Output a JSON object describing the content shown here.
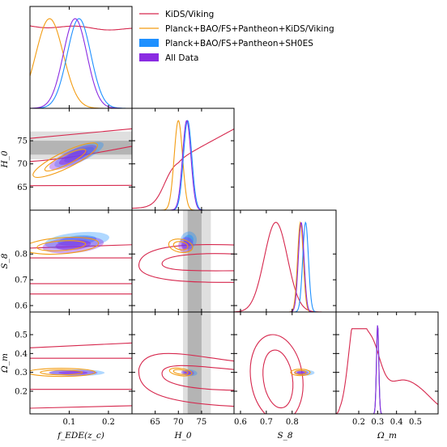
{
  "chart_data": {
    "type": "corner",
    "parameters": [
      {
        "key": "fEDE",
        "label": "f_EDE(z_c)",
        "range": [
          0.0,
          0.26
        ],
        "ticks": [
          0.1,
          0.2
        ],
        "tick_labels": [
          "0.1",
          "0.2"
        ]
      },
      {
        "key": "H0",
        "label": "H_0",
        "range": [
          60,
          82
        ],
        "ticks": [
          65,
          70,
          75
        ],
        "tick_labels": [
          "65",
          "70",
          "75"
        ]
      },
      {
        "key": "S8",
        "label": "S_8",
        "range": [
          0.575,
          0.97
        ],
        "ticks": [
          0.6,
          0.7,
          0.8
        ],
        "tick_labels": [
          "0.6",
          "0.7",
          "0.8"
        ]
      },
      {
        "key": "Om",
        "label": "Ω_m",
        "range": [
          0.08,
          0.62
        ],
        "ticks": [
          0.2,
          0.3,
          0.4,
          0.5
        ],
        "tick_labels": [
          "0.2",
          "0.3",
          "0.4",
          "0.5"
        ]
      }
    ],
    "left_axis": [
      {
        "param": "H0",
        "ticks": [
          65,
          70,
          75
        ],
        "tick_labels": [
          "65",
          "70",
          "75"
        ],
        "label": "H_0"
      },
      {
        "param": "S8",
        "ticks": [
          0.6,
          0.7,
          0.8
        ],
        "tick_labels": [
          "0.6",
          "0.7",
          "0.8"
        ],
        "label": "S_8"
      },
      {
        "param": "Om",
        "ticks": [
          0.2,
          0.3,
          0.4,
          0.5
        ],
        "tick_labels": [
          "0.2",
          "0.3",
          "0.4",
          "0.5"
        ],
        "label": "Ω_m"
      }
    ],
    "series": [
      {
        "name": "KiDS/Viking",
        "color": "#d6274d",
        "style": "line"
      },
      {
        "name": "Planck+BAO/FS+Pantheon+KiDS/Viking",
        "color": "#f39c12",
        "style": "line"
      },
      {
        "name": "Planck+BAO/FS+Pantheon+SH0ES",
        "color": "#1e90ff",
        "style": "filled"
      },
      {
        "name": "All Data",
        "color": "#8a2be2",
        "style": "filled"
      }
    ],
    "marginals_1d": {
      "fEDE": {
        "KiDS/Viking": {
          "kind": "flat",
          "level": 0.92
        },
        "Planck+BAO/FS+Pantheon+KiDS/Viking": {
          "mean": 0.05,
          "sd": 0.035
        },
        "Planck+BAO/FS+Pantheon+SH0ES": {
          "mean": 0.125,
          "sd": 0.03
        },
        "All Data": {
          "mean": 0.115,
          "sd": 0.03
        }
      },
      "H0": {
        "KiDS/Viking": {
          "kind": "rising"
        },
        "Planck+BAO/FS+Pantheon+KiDS/Viking": {
          "mean": 70.0,
          "sd": 0.9
        },
        "Planck+BAO/FS+Pantheon+SH0ES": {
          "mean": 72.0,
          "sd": 0.9
        },
        "All Data": {
          "mean": 71.8,
          "sd": 0.9
        }
      },
      "S8": {
        "KiDS/Viking": {
          "mean": 0.737,
          "sd": 0.045
        },
        "Planck+BAO/FS+Pantheon+KiDS/Viking": {
          "mean": 0.832,
          "sd": 0.011
        },
        "Planck+BAO/FS+Pantheon+SH0ES": {
          "mean": 0.852,
          "sd": 0.011
        },
        "All Data": {
          "mean": 0.835,
          "sd": 0.011
        }
      },
      "Om": {
        "KiDS/Viking": {
          "kind": "broad",
          "peak": 0.18
        },
        "Planck+BAO/FS+Pantheon+KiDS/Viking": {
          "mean": 0.3,
          "sd": 0.006
        },
        "Planck+BAO/FS+Pantheon+SH0ES": {
          "mean": 0.3,
          "sd": 0.006
        },
        "All Data": {
          "mean": 0.3,
          "sd": 0.006
        }
      }
    },
    "bands": {
      "H0_prior": {
        "center": 73.5,
        "inner": [
          72.0,
          75.0
        ],
        "outer": [
          71.0,
          77.0
        ],
        "color": "#808080"
      }
    },
    "legend_position": "upper-right"
  }
}
